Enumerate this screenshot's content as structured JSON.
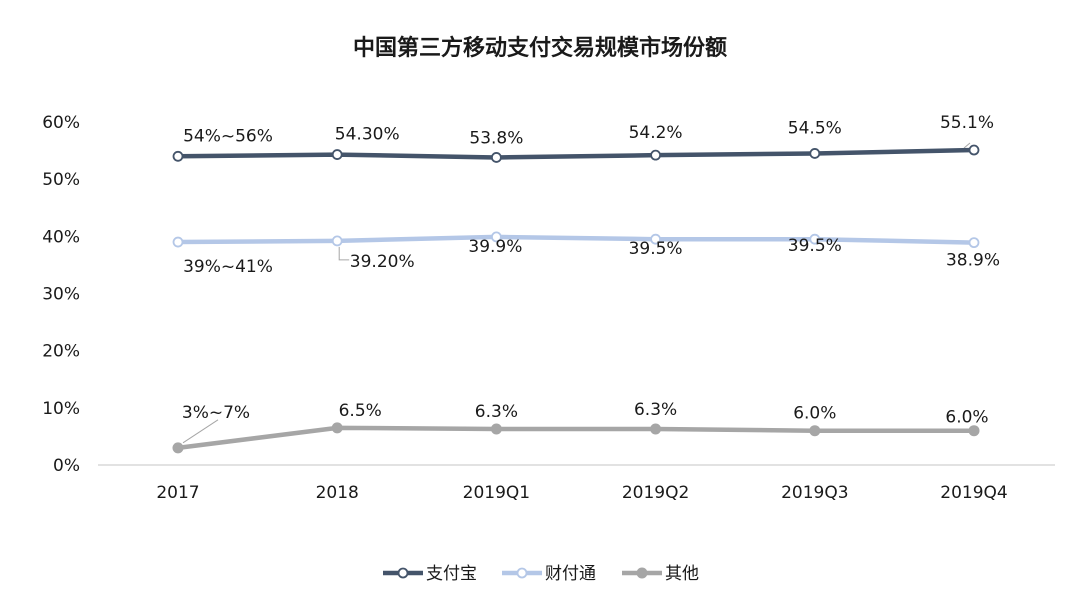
{
  "chart_data": {
    "type": "line",
    "title": "中国第三方移动支付交易规模市场份额",
    "categories": [
      "2017",
      "2018",
      "2019Q1",
      "2019Q2",
      "2019Q3",
      "2019Q4"
    ],
    "ylim": [
      0,
      60
    ],
    "yticks": [
      "0%",
      "10%",
      "20%",
      "30%",
      "40%",
      "50%",
      "60%"
    ],
    "grid": false,
    "legend": "bottom",
    "series": [
      {
        "name": "支付宝",
        "color": "#44546a",
        "marker": "open-circle",
        "values": [
          54,
          54.3,
          53.8,
          54.2,
          54.5,
          55.1
        ],
        "labels": [
          "54%~56%",
          "54.30%",
          "53.8%",
          "54.2%",
          "54.5%",
          "55.1%"
        ]
      },
      {
        "name": "财付通",
        "color": "#b4c7e7",
        "marker": "open-circle",
        "values": [
          39,
          39.2,
          39.9,
          39.5,
          39.5,
          38.9
        ],
        "labels": [
          "39%~41%",
          "39.20%",
          "39.9%",
          "39.5%",
          "39.5%",
          "38.9%"
        ]
      },
      {
        "name": "其他",
        "color": "#a6a6a6",
        "marker": "filled-circle",
        "values": [
          3,
          6.5,
          6.3,
          6.3,
          6.0,
          6.0
        ],
        "labels": [
          "3%~7%",
          "6.5%",
          "6.3%",
          "6.3%",
          "6.0%",
          "6.0%"
        ]
      }
    ]
  }
}
